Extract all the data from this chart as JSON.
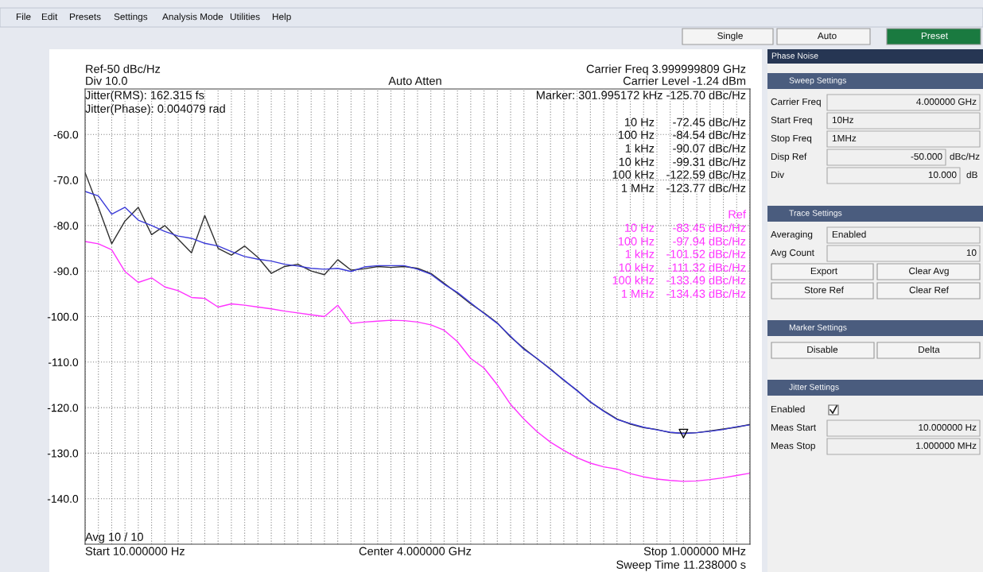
{
  "chart_data": [
    {
      "type": "line",
      "grid": true,
      "tick_labels": "y",
      "ylim": [
        -150,
        -50
      ],
      "categories": [
        null,
        null,
        null,
        null,
        null,
        null,
        null,
        null,
        null,
        null,
        null,
        null,
        null,
        null,
        null,
        null,
        null,
        null,
        null,
        null,
        null,
        null,
        null,
        null,
        null,
        null,
        null,
        null,
        null,
        null,
        null,
        null,
        null,
        null,
        null,
        null,
        null,
        null,
        null,
        null,
        null,
        null,
        null,
        null,
        null,
        null,
        null,
        null,
        null,
        null,
        null
      ],
      "yticks": [
        {
          "value": -60,
          "label": "-60.0"
        },
        {
          "value": -70,
          "label": "-70.0"
        },
        {
          "value": -80,
          "label": "-80.0"
        },
        {
          "value": -90,
          "label": "-90.0"
        },
        {
          "value": -100,
          "label": "-100.0"
        },
        {
          "value": -110,
          "label": "-110.0"
        },
        {
          "value": -120,
          "label": "-120.0"
        },
        {
          "value": -130,
          "label": "-130.0"
        },
        {
          "value": -140,
          "label": "-140.0"
        }
      ],
      "series": [
        {
          "color": "#ff33ff",
          "values": [
            -83.5,
            -84.0,
            -85.3,
            -90.1,
            -92.5,
            -91.5,
            -93.5,
            -94.3,
            -95.8,
            -96.0,
            -97.9,
            -97.2,
            -97.5,
            -97.9,
            -98.3,
            -98.8,
            -99.2,
            -99.6,
            -100.0,
            -97.5,
            -101.5,
            -101.2,
            -101.0,
            -100.8,
            -100.9,
            -101.2,
            -101.8,
            -103.0,
            -105.5,
            -109.2,
            -111.3,
            -115.0,
            -119.3,
            -122.5,
            -125.3,
            -127.6,
            -129.4,
            -131.0,
            -132.2,
            -133.0,
            -133.5,
            -134.5,
            -135.2,
            -135.7,
            -136.0,
            -136.2,
            -136.1,
            -135.8,
            -135.4,
            -134.9,
            -134.4
          ]
        },
        {
          "color": "#303030",
          "values": [
            -68.4,
            -76.0,
            -84.0,
            -79.0,
            -76.0,
            -82.0,
            -80.0,
            -83.0,
            -86.0,
            -77.8,
            -85.0,
            -86.5,
            -84.5,
            -87.0,
            -90.5,
            -89.0,
            -88.5,
            -90.0,
            -90.8,
            -87.5,
            -89.8,
            -89.5,
            -89.0,
            -89.2,
            -89.0,
            -89.4,
            -90.5,
            -92.7,
            -94.9,
            -97.2,
            -99.2,
            -101.4,
            -104.5,
            -107.0,
            -109.3,
            -111.5,
            -114.0,
            -116.2,
            -118.8,
            -120.7,
            -122.5,
            -123.6,
            -124.4,
            -124.8,
            -125.5,
            -125.6,
            -125.5,
            -125.1,
            -124.7,
            -124.3,
            -123.7
          ]
        },
        {
          "color": "#3a3ad8",
          "values": [
            -72.5,
            -73.5,
            -77.5,
            -76.0,
            -78.8,
            -80.0,
            -81.3,
            -82.3,
            -82.8,
            -83.9,
            -84.5,
            -85.7,
            -86.8,
            -87.4,
            -87.8,
            -88.5,
            -88.9,
            -89.4,
            -89.6,
            -89.4,
            -90.1,
            -89.1,
            -88.8,
            -88.8,
            -88.8,
            -89.6,
            -90.7,
            -92.9,
            -94.7,
            -97.0,
            -99.3,
            -101.5,
            -104.3,
            -107.2,
            -109.2,
            -111.6,
            -113.9,
            -116.3,
            -118.7,
            -120.8,
            -122.6,
            -123.5,
            -124.3,
            -124.9,
            -125.4,
            -125.7,
            -125.5,
            -125.2,
            -124.8,
            -124.2,
            -123.8
          ]
        }
      ],
      "annotations": [
        "Ref-50 dBc/Hz",
        "Div 10.0",
        "Auto Atten",
        "Carrier Freq 3.999999809 GHz",
        "Carrier Level -1.24 dBm",
        "Jitter(RMS): 162.315 fs",
        "Jitter(Phase): 0.004079 rad",
        "Marker: 301.995172 kHz -125.70 dBc/Hz",
        "10 Hz",
        "-72.45 dBc/Hz",
        "100 Hz",
        "-84.54 dBc/Hz",
        "1 kHz",
        "-90.07 dBc/Hz",
        "10 kHz",
        "-99.31 dBc/Hz",
        "100 kHz",
        "-122.59 dBc/Hz",
        "1 MHz",
        "-123.77 dBc/Hz",
        "Ref",
        "10 Hz",
        "-83.45 dBc/Hz",
        "100 Hz",
        "-97.94 dBc/Hz",
        "1 kHz",
        "-101.52 dBc/Hz",
        "10 kHz",
        "-111.32 dBc/Hz",
        "100 kHz",
        "-133.49 dBc/Hz",
        "1 MHz",
        "-134.43 dBc/Hz",
        "Avg 10 / 10",
        "Start 10.000000 Hz",
        "Center 4.000000 GHz",
        "Stop 1.000000 MHz",
        "Sweep Time 11.238000 s"
      ]
    },
    {
      "type": "other",
      "annotations": [
        "File",
        "Edit",
        "Presets",
        "Settings",
        "Analysis Mode",
        "Utilities",
        "Help",
        "Single",
        "Auto",
        "Preset",
        "Phase Noise",
        "Sweep Settings",
        "Carrier Freq",
        "4.000000 GHz",
        "Start Freq",
        "10Hz",
        "Stop Freq",
        "1MHz",
        "Disp Ref",
        "-50.000",
        "dBc/Hz",
        "Div",
        "10.000",
        "dB",
        "Trace Settings",
        "Averaging",
        "Enabled",
        "Avg Count",
        "10",
        "Export",
        "Clear Avg",
        "Store Ref",
        "Clear Ref",
        "Marker Settings",
        "Disable",
        "Delta",
        "Jitter Settings",
        "Enabled",
        "Meas Start",
        "10.000000 Hz",
        "Meas Stop",
        "1.000000 MHz"
      ]
    }
  ]
}
